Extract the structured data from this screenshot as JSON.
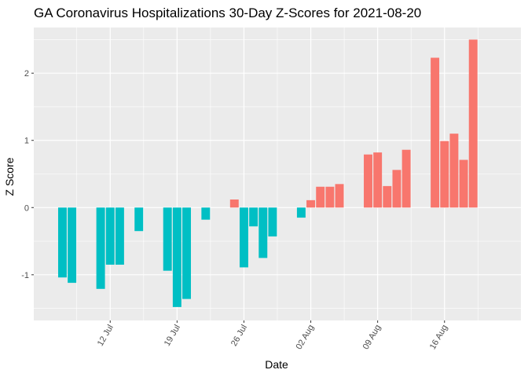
{
  "chart_data": {
    "type": "bar",
    "title": "GA Coronavirus Hospitalizations 30-Day Z-Scores for 2021-08-20",
    "xlabel": "Date",
    "ylabel": "Z Score",
    "x_range": [
      "2021-07-04",
      "2021-08-24"
    ],
    "ylim": [
      -1.68,
      2.68
    ],
    "y_ticks": [
      -1,
      0,
      1,
      2
    ],
    "x_ticks": [
      {
        "date": "2021-07-12",
        "label": "12 Jul"
      },
      {
        "date": "2021-07-19",
        "label": "19 Jul"
      },
      {
        "date": "2021-07-26",
        "label": "26 Jul"
      },
      {
        "date": "2021-08-02",
        "label": "02 Aug"
      },
      {
        "date": "2021-08-09",
        "label": "09 Aug"
      },
      {
        "date": "2021-08-16",
        "label": "16 Aug"
      }
    ],
    "grid": true,
    "legend": "none",
    "colors": {
      "positive": "#F8766D",
      "negative": "#00BFC4",
      "panel": "#EBEBEB",
      "grid": "#FFFFFF"
    },
    "points": [
      {
        "date": "2021-07-07",
        "value": -1.04
      },
      {
        "date": "2021-07-08",
        "value": -1.12
      },
      {
        "date": "2021-07-11",
        "value": -1.21
      },
      {
        "date": "2021-07-12",
        "value": -0.85
      },
      {
        "date": "2021-07-13",
        "value": -0.85
      },
      {
        "date": "2021-07-15",
        "value": -0.35
      },
      {
        "date": "2021-07-18",
        "value": -0.94
      },
      {
        "date": "2021-07-19",
        "value": -1.48
      },
      {
        "date": "2021-07-20",
        "value": -1.36
      },
      {
        "date": "2021-07-22",
        "value": -0.18
      },
      {
        "date": "2021-07-25",
        "value": 0.12
      },
      {
        "date": "2021-07-26",
        "value": -0.89
      },
      {
        "date": "2021-07-27",
        "value": -0.28
      },
      {
        "date": "2021-07-28",
        "value": -0.75
      },
      {
        "date": "2021-07-29",
        "value": -0.43
      },
      {
        "date": "2021-08-01",
        "value": -0.15
      },
      {
        "date": "2021-08-02",
        "value": 0.11
      },
      {
        "date": "2021-08-03",
        "value": 0.31
      },
      {
        "date": "2021-08-04",
        "value": 0.31
      },
      {
        "date": "2021-08-05",
        "value": 0.35
      },
      {
        "date": "2021-08-08",
        "value": 0.79
      },
      {
        "date": "2021-08-09",
        "value": 0.82
      },
      {
        "date": "2021-08-10",
        "value": 0.32
      },
      {
        "date": "2021-08-11",
        "value": 0.56
      },
      {
        "date": "2021-08-12",
        "value": 0.86
      },
      {
        "date": "2021-08-15",
        "value": 2.23
      },
      {
        "date": "2021-08-16",
        "value": 0.99
      },
      {
        "date": "2021-08-17",
        "value": 1.1
      },
      {
        "date": "2021-08-18",
        "value": 0.71
      },
      {
        "date": "2021-08-19",
        "value": 2.5
      }
    ]
  }
}
